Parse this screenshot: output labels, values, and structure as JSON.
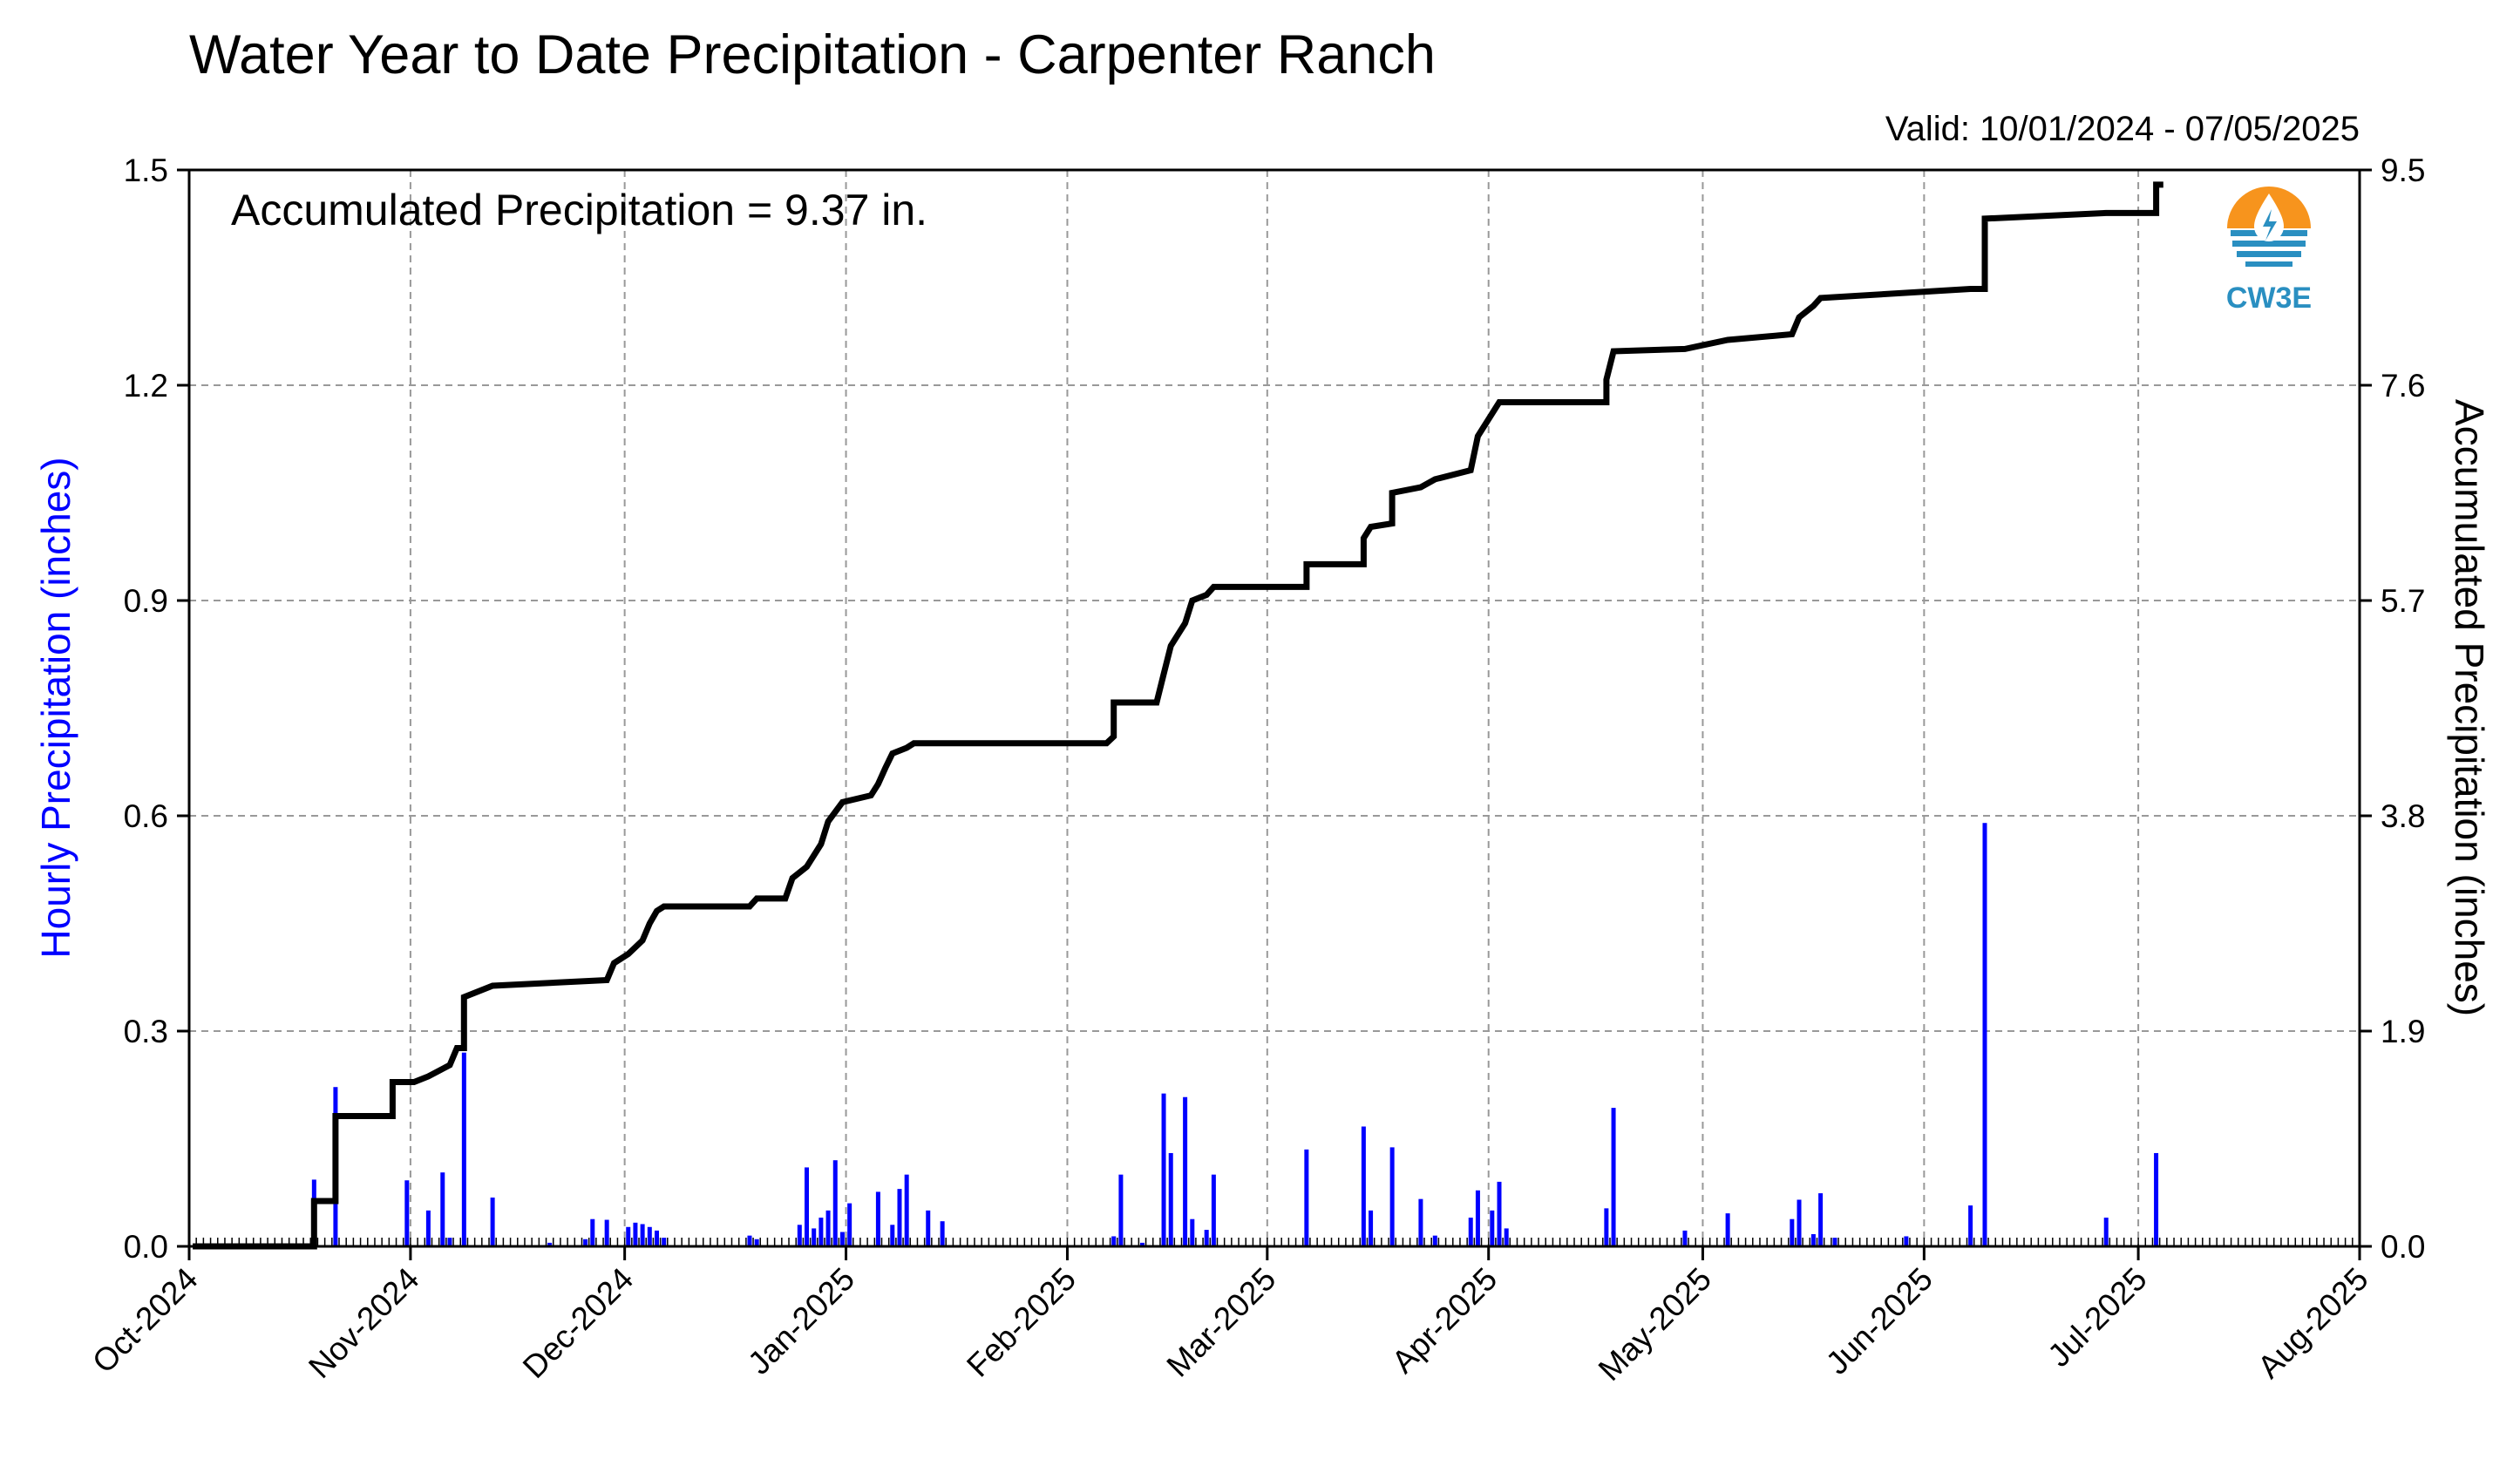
{
  "chart_data": {
    "type": "bar",
    "title": "Water Year to Date Precipitation - Carpenter Ranch",
    "valid": "Valid: 10/01/2024 - 07/05/2025",
    "annotation": "Accumulated Precipitation = 9.37 in.",
    "logo_text": "CW3E",
    "ylabel_left": "Hourly Precipitation (inches)",
    "ylabel_right": "Accumulated Precipitation (inches)",
    "x_ticks": [
      "Oct-2024",
      "Nov-2024",
      "Dec-2024",
      "Jan-2025",
      "Feb-2025",
      "Mar-2025",
      "Apr-2025",
      "May-2025",
      "Jun-2025",
      "Jul-2025",
      "Aug-2025"
    ],
    "x_tick_dates": [
      "2024-10-01",
      "2024-11-01",
      "2024-12-01",
      "2025-01-01",
      "2025-02-01",
      "2025-03-01",
      "2025-04-01",
      "2025-05-01",
      "2025-06-01",
      "2025-07-01",
      "2025-08-01"
    ],
    "xlim": [
      "2024-10-01",
      "2025-08-01"
    ],
    "y_left_ticks": [
      "0.0",
      "0.3",
      "0.6",
      "0.9",
      "1.2",
      "1.5"
    ],
    "ylim_left": [
      0,
      1.5
    ],
    "y_right_ticks": [
      "0.0",
      "1.9",
      "3.8",
      "5.7",
      "7.6",
      "9.5"
    ],
    "ylim_right": [
      0,
      9.5
    ],
    "grid": true,
    "colors": {
      "hourly": "#0000ff",
      "accumulated": "#000000",
      "grid": "#999999",
      "left_label": "#0000ff"
    },
    "series": [
      {
        "type": "bar",
        "axis": "left",
        "values": [
          [
            "2024-10-18",
            0.093
          ],
          [
            "2024-10-21",
            0.222
          ],
          [
            "2024-10-31",
            0.092
          ],
          [
            "2024-11-03",
            0.05
          ],
          [
            "2024-11-05",
            0.103
          ],
          [
            "2024-11-06",
            0.012
          ],
          [
            "2024-11-08",
            0.27
          ],
          [
            "2024-11-12",
            0.068
          ],
          [
            "2024-11-20",
            0.005
          ],
          [
            "2024-11-25",
            0.01
          ],
          [
            "2024-11-26",
            0.038
          ],
          [
            "2024-11-28",
            0.037
          ],
          [
            "2024-12-01",
            0.027
          ],
          [
            "2024-12-02",
            0.033
          ],
          [
            "2024-12-03",
            0.031
          ],
          [
            "2024-12-04",
            0.027
          ],
          [
            "2024-12-05",
            0.022
          ],
          [
            "2024-12-06",
            0.012
          ],
          [
            "2024-12-18",
            0.015
          ],
          [
            "2024-12-19",
            0.01
          ],
          [
            "2024-12-25",
            0.03
          ],
          [
            "2024-12-26",
            0.11
          ],
          [
            "2024-12-27",
            0.025
          ],
          [
            "2024-12-28",
            0.04
          ],
          [
            "2024-12-29",
            0.05
          ],
          [
            "2024-12-30",
            0.12
          ],
          [
            "2024-12-31",
            0.02
          ],
          [
            "2025-01-01",
            0.06
          ],
          [
            "2025-01-05",
            0.076
          ],
          [
            "2025-01-07",
            0.03
          ],
          [
            "2025-01-08",
            0.08
          ],
          [
            "2025-01-09",
            0.1
          ],
          [
            "2025-01-12",
            0.05
          ],
          [
            "2025-01-14",
            0.035
          ],
          [
            "2025-02-07",
            0.014
          ],
          [
            "2025-02-08",
            0.1
          ],
          [
            "2025-02-11",
            0.005
          ],
          [
            "2025-02-14",
            0.213
          ],
          [
            "2025-02-15",
            0.13
          ],
          [
            "2025-02-17",
            0.208
          ],
          [
            "2025-02-18",
            0.038
          ],
          [
            "2025-02-20",
            0.023
          ],
          [
            "2025-02-21",
            0.1
          ],
          [
            "2025-03-06",
            0.135
          ],
          [
            "2025-03-14",
            0.167
          ],
          [
            "2025-03-15",
            0.05
          ],
          [
            "2025-03-18",
            0.138
          ],
          [
            "2025-03-22",
            0.066
          ],
          [
            "2025-03-24",
            0.015
          ],
          [
            "2025-03-29",
            0.04
          ],
          [
            "2025-03-30",
            0.078
          ],
          [
            "2025-04-01",
            0.05
          ],
          [
            "2025-04-02",
            0.09
          ],
          [
            "2025-04-03",
            0.025
          ],
          [
            "2025-04-17",
            0.053
          ],
          [
            "2025-04-18",
            0.193
          ],
          [
            "2025-04-28",
            0.022
          ],
          [
            "2025-05-04",
            0.046
          ],
          [
            "2025-05-13",
            0.038
          ],
          [
            "2025-05-14",
            0.065
          ],
          [
            "2025-05-16",
            0.017
          ],
          [
            "2025-05-17",
            0.074
          ],
          [
            "2025-05-19",
            0.012
          ],
          [
            "2025-05-29",
            0.014
          ],
          [
            "2025-06-07",
            0.057
          ],
          [
            "2025-06-09",
            0.59
          ],
          [
            "2025-06-26",
            0.04
          ],
          [
            "2025-07-03",
            0.13
          ]
        ]
      },
      {
        "type": "line",
        "axis": "right",
        "style": "step",
        "values": [
          [
            "2024-10-01",
            0
          ],
          [
            "2024-10-18",
            0
          ],
          [
            "2024-10-18",
            0.4
          ],
          [
            "2024-10-21",
            0.4
          ],
          [
            "2024-10-21",
            1.15
          ],
          [
            "2024-10-29",
            1.15
          ],
          [
            "2024-10-29",
            1.45
          ],
          [
            "2024-11-01",
            1.45
          ],
          [
            "2024-11-03",
            1.5
          ],
          [
            "2024-11-06",
            1.6
          ],
          [
            "2024-11-07",
            1.75
          ],
          [
            "2024-11-08",
            1.75
          ],
          [
            "2024-11-08",
            2.2
          ],
          [
            "2024-11-12",
            2.3
          ],
          [
            "2024-11-28",
            2.35
          ],
          [
            "2024-11-29",
            2.5
          ],
          [
            "2024-12-01",
            2.58
          ],
          [
            "2024-12-03",
            2.7
          ],
          [
            "2024-12-04",
            2.85
          ],
          [
            "2024-12-05",
            2.96
          ],
          [
            "2024-12-06",
            3.0
          ],
          [
            "2024-12-18",
            3.0
          ],
          [
            "2024-12-19",
            3.07
          ],
          [
            "2024-12-23",
            3.07
          ],
          [
            "2024-12-24",
            3.25
          ],
          [
            "2024-12-26",
            3.35
          ],
          [
            "2024-12-28",
            3.55
          ],
          [
            "2024-12-29",
            3.75
          ],
          [
            "2024-12-31",
            3.92
          ],
          [
            "2025-01-04",
            3.98
          ],
          [
            "2025-01-05",
            4.08
          ],
          [
            "2025-01-06",
            4.22
          ],
          [
            "2025-01-07",
            4.35
          ],
          [
            "2025-01-09",
            4.4
          ],
          [
            "2025-01-10",
            4.44
          ],
          [
            "2025-02-06",
            4.44
          ],
          [
            "2025-02-07",
            4.5
          ],
          [
            "2025-02-07",
            4.8
          ],
          [
            "2025-02-13",
            4.8
          ],
          [
            "2025-02-14",
            5.05
          ],
          [
            "2025-02-15",
            5.3
          ],
          [
            "2025-02-17",
            5.5
          ],
          [
            "2025-02-18",
            5.7
          ],
          [
            "2025-02-20",
            5.75
          ],
          [
            "2025-02-21",
            5.82
          ],
          [
            "2025-03-06",
            5.82
          ],
          [
            "2025-03-06",
            6.02
          ],
          [
            "2025-03-14",
            6.02
          ],
          [
            "2025-03-14",
            6.25
          ],
          [
            "2025-03-15",
            6.35
          ],
          [
            "2025-03-18",
            6.38
          ],
          [
            "2025-03-18",
            6.65
          ],
          [
            "2025-03-22",
            6.7
          ],
          [
            "2025-03-24",
            6.77
          ],
          [
            "2025-03-29",
            6.85
          ],
          [
            "2025-03-30",
            7.15
          ],
          [
            "2025-04-01",
            7.35
          ],
          [
            "2025-04-02",
            7.45
          ],
          [
            "2025-04-17",
            7.45
          ],
          [
            "2025-04-17",
            7.65
          ],
          [
            "2025-04-18",
            7.9
          ],
          [
            "2025-04-28",
            7.92
          ],
          [
            "2025-05-04",
            8.0
          ],
          [
            "2025-05-13",
            8.05
          ],
          [
            "2025-05-14",
            8.2
          ],
          [
            "2025-05-16",
            8.3
          ],
          [
            "2025-05-17",
            8.37
          ],
          [
            "2025-06-07",
            8.45
          ],
          [
            "2025-06-09",
            8.45
          ],
          [
            "2025-06-09",
            9.07
          ],
          [
            "2025-06-26",
            9.12
          ],
          [
            "2025-07-03",
            9.12
          ],
          [
            "2025-07-03",
            9.37
          ],
          [
            "2025-07-04",
            9.37
          ]
        ]
      }
    ]
  }
}
